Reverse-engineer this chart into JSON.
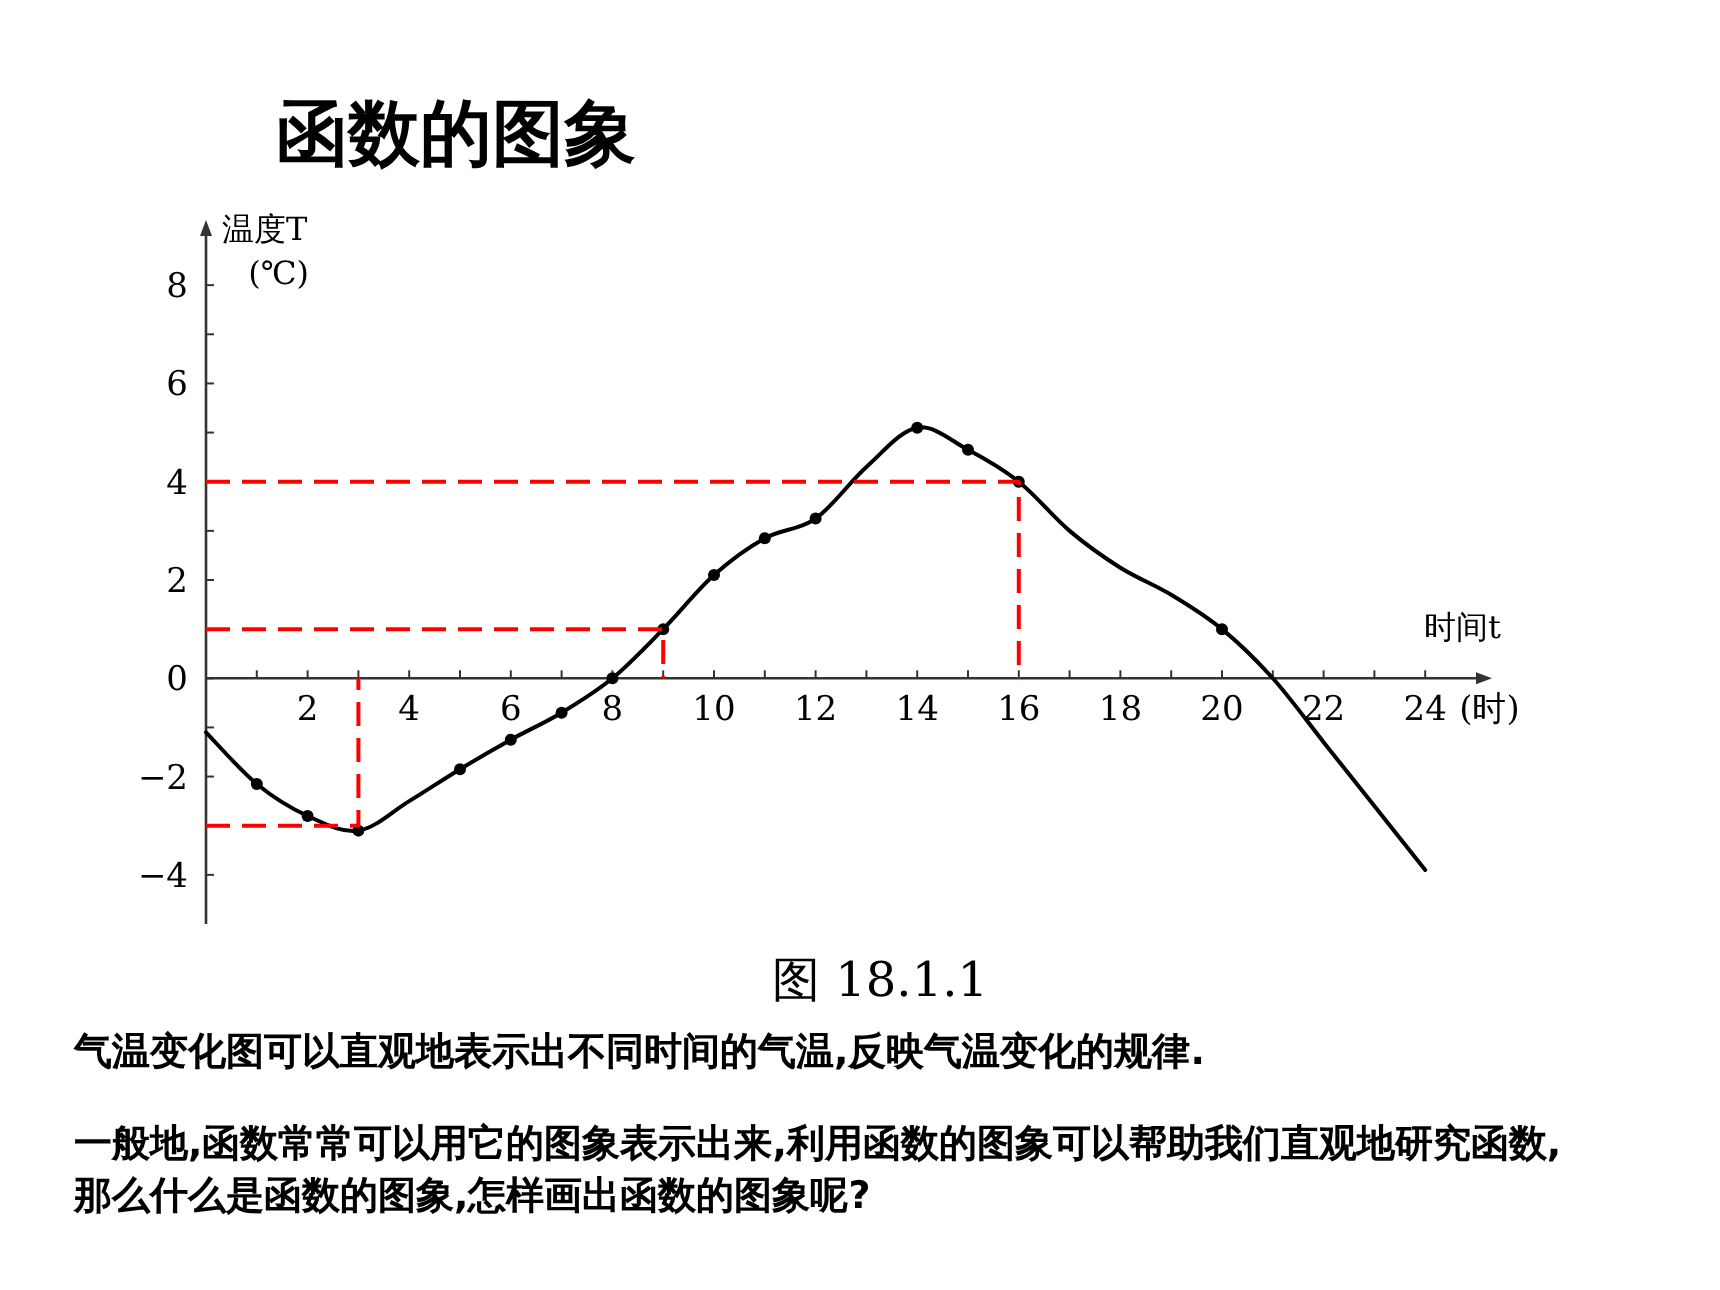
{
  "chart_data": {
    "type": "line",
    "title": "函数的图象",
    "xlabel": "时间t",
    "ylabel": "温度T (℃)",
    "annotations": [
      "(时)",
      "图 18.1.1",
      "气温变化图可以直观地表示出不同时间的气温,反映气温变化的规律.",
      "一般地,函数常常可以用它的图象表示出来,利用函数的图象可以帮助我们直观地研究函数,那么什么是函数的图象,怎样画出函数的图象呢?"
    ],
    "xlim": [
      0,
      25
    ],
    "ylim": [
      -5,
      9
    ],
    "xticks": [
      {
        "value": 1,
        "label": null
      },
      2,
      {
        "value": 3,
        "label": null
      },
      4,
      {
        "value": 5,
        "label": null
      },
      6,
      {
        "value": 7,
        "label": null
      },
      8,
      {
        "value": 9,
        "label": null
      },
      10,
      {
        "value": 11,
        "label": null
      },
      12,
      {
        "value": 13,
        "label": null
      },
      14,
      {
        "value": 15,
        "label": null
      },
      16,
      {
        "value": 17,
        "label": null
      },
      18,
      {
        "value": 19,
        "label": null
      },
      20,
      {
        "value": 21,
        "label": null
      },
      22,
      {
        "value": 23,
        "label": null
      },
      24
    ],
    "yticks": [
      -4,
      {
        "value": -3,
        "label": null
      },
      -2,
      {
        "value": -1,
        "label": null
      },
      0,
      {
        "value": 1,
        "label": null
      },
      2,
      {
        "value": 3,
        "label": null
      },
      4,
      {
        "value": 5,
        "label": null
      },
      6,
      {
        "value": 7,
        "label": null
      },
      8
    ],
    "grid": false,
    "series": [
      {
        "type": "line",
        "color": "#000000",
        "marker": "none",
        "x": [
          0,
          1,
          2,
          3,
          4,
          5,
          6,
          7,
          8,
          9,
          10,
          11,
          12,
          13,
          14,
          15,
          16,
          17,
          18,
          19,
          20,
          21,
          22,
          23,
          24
        ],
        "values": [
          -1.1,
          -2.15,
          -2.8,
          -3.1,
          -2.5,
          -1.85,
          -1.25,
          -0.7,
          0,
          1,
          2.1,
          2.85,
          3.25,
          4.3,
          5.1,
          4.65,
          4,
          3,
          2.25,
          1.7,
          1,
          0,
          -1.3,
          -2.6,
          -3.9
        ]
      },
      {
        "type": "scatter",
        "color": "#000000",
        "marker": "circle",
        "x": [
          1,
          2,
          3,
          5,
          6,
          7,
          8,
          9,
          10,
          11,
          12,
          14,
          15,
          16,
          20
        ],
        "values": [
          -2.15,
          -2.8,
          -3.1,
          -1.85,
          -1.25,
          -0.7,
          0,
          1,
          2.1,
          2.85,
          3.25,
          5.1,
          4.65,
          4,
          1
        ]
      },
      {
        "type": "line",
        "color": "#ff0000",
        "line_style": "dashed",
        "marker": "none",
        "x": [
          0,
          3,
          3
        ],
        "values": [
          -3,
          -3,
          0
        ]
      },
      {
        "type": "line",
        "color": "#ff0000",
        "line_style": "dashed",
        "marker": "none",
        "x": [
          0,
          9,
          9
        ],
        "values": [
          1,
          1,
          0
        ]
      },
      {
        "type": "line",
        "color": "#ff0000",
        "line_style": "dashed",
        "marker": "none",
        "x": [
          0,
          16,
          16
        ],
        "values": [
          4,
          4,
          0
        ]
      }
    ]
  }
}
